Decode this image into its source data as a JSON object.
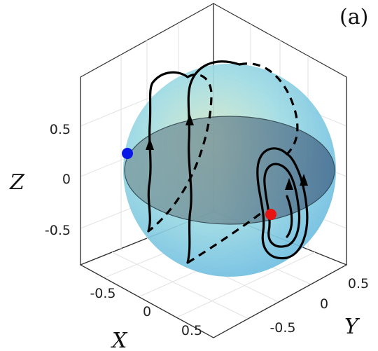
{
  "panel_label": "(a)",
  "axes": {
    "x": {
      "label": "X",
      "ticks": [
        "-0.5",
        "0",
        "0.5"
      ]
    },
    "y": {
      "label": "Y",
      "ticks": [
        "-0.5",
        "0",
        "0.5"
      ]
    },
    "z": {
      "label": "Z",
      "ticks": [
        "0.5",
        "0",
        "-0.5"
      ]
    }
  },
  "colors": {
    "sphere": "#7ed3e6",
    "equator_disk": "#506f86",
    "blue_point": "#0a18e6",
    "red_point": "#e81414",
    "trajectory": "#000000"
  },
  "points": [
    {
      "name": "blue-point",
      "color": "blue"
    },
    {
      "name": "red-point",
      "color": "red"
    }
  ]
}
